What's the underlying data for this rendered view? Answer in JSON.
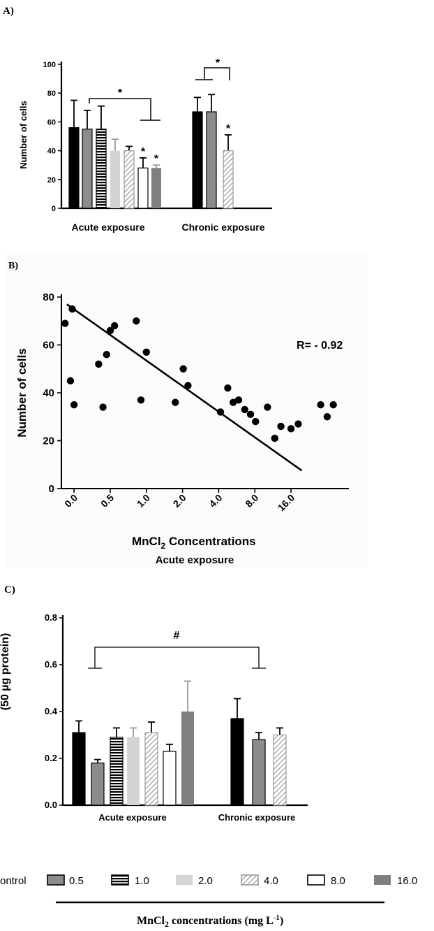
{
  "colors": {
    "black": "#000000",
    "gray": "#8c8c8c",
    "light": "#d4d4d4",
    "dark": "#7f7f7f",
    "panel_b_bg": "#fbfbfb"
  },
  "chart_data": [
    {
      "panel": "A)",
      "type": "bar",
      "ylabel": "Number of cells",
      "ylim": [
        0,
        100
      ],
      "yticks": [
        "0",
        "20",
        "40",
        "60",
        "80",
        "100"
      ],
      "groups": [
        {
          "label": "Acute exposure",
          "bars": [
            {
              "name": "Control",
              "value": 56,
              "error": 19
            },
            {
              "name": "0.5",
              "value": 55,
              "error": 13
            },
            {
              "name": "1.0",
              "value": 55,
              "error": 16
            },
            {
              "name": "2.0",
              "value": 40,
              "error": 8
            },
            {
              "name": "4.0",
              "value": 40,
              "error": 3
            },
            {
              "name": "8.0",
              "value": 28,
              "error": 7,
              "star": "*"
            },
            {
              "name": "16.0",
              "value": 28,
              "error": 2,
              "star": "*"
            }
          ]
        },
        {
          "label": "Chronic exposure",
          "bars": [
            {
              "name": "Control",
              "value": 67,
              "error": 10
            },
            {
              "name": "0.5",
              "value": 67,
              "error": 12
            },
            {
              "name": "4.0",
              "value": 40,
              "error": 11,
              "star": "*"
            }
          ]
        }
      ],
      "brackets": [
        {
          "symbol": "*",
          "group": "Acute exposure"
        },
        {
          "symbol": "*",
          "group": "Chronic exposure"
        }
      ]
    },
    {
      "panel": "B)",
      "type": "scatter",
      "xlabel_main": "MnCl",
      "xlabel_sub": "2",
      "xlabel_rest": " Concentrations",
      "xlabel2": "Acute exposure",
      "ylabel": "Number of cells",
      "ylim": [
        0,
        80
      ],
      "yticks": [
        "0",
        "20",
        "40",
        "60",
        "80"
      ],
      "xticks": [
        "0.0",
        "0.5",
        "1.0",
        "2.0",
        "4.0",
        "8.0",
        "16.0"
      ],
      "annotation": "R= - 0.92",
      "regression": {
        "start": [
          -0.2,
          77
        ],
        "end": [
          6.3,
          7.5
        ]
      },
      "points": [
        [
          -0.25,
          69
        ],
        [
          -0.1,
          45
        ],
        [
          -0.05,
          75
        ],
        [
          0.0,
          35
        ],
        [
          0.68,
          52
        ],
        [
          0.8,
          34
        ],
        [
          0.9,
          56
        ],
        [
          1.0,
          66
        ],
        [
          1.12,
          68
        ],
        [
          1.72,
          70
        ],
        [
          1.85,
          37
        ],
        [
          2.0,
          57
        ],
        [
          2.8,
          36
        ],
        [
          3.02,
          50
        ],
        [
          3.15,
          43
        ],
        [
          4.05,
          32
        ],
        [
          4.25,
          42
        ],
        [
          4.4,
          36
        ],
        [
          4.55,
          37
        ],
        [
          4.72,
          33
        ],
        [
          4.88,
          31
        ],
        [
          5.02,
          28
        ],
        [
          5.35,
          34
        ],
        [
          5.55,
          21
        ],
        [
          5.72,
          26
        ],
        [
          6.0,
          25
        ],
        [
          6.2,
          27
        ],
        [
          6.82,
          35
        ],
        [
          7.0,
          30
        ],
        [
          7.17,
          35
        ]
      ]
    },
    {
      "panel": "C)",
      "type": "bar",
      "ylabel": "(50 µg protein)",
      "ylim": [
        0,
        0.8
      ],
      "yticks": [
        "0.0",
        "0.2",
        "0.4",
        "0.6",
        "0.8"
      ],
      "groups": [
        {
          "label": "Acute exposure",
          "bars": [
            {
              "name": "Control",
              "value": 0.31,
              "error": 0.05
            },
            {
              "name": "0.5",
              "value": 0.18,
              "error": 0.015
            },
            {
              "name": "1.0",
              "value": 0.29,
              "error": 0.04
            },
            {
              "name": "2.0",
              "value": 0.29,
              "error": 0.04
            },
            {
              "name": "4.0",
              "value": 0.31,
              "error": 0.045
            },
            {
              "name": "8.0",
              "value": 0.23,
              "error": 0.03
            },
            {
              "name": "16.0",
              "value": 0.4,
              "error": 0.13
            }
          ]
        },
        {
          "label": "Chronic exposure",
          "bars": [
            {
              "name": "Control",
              "value": 0.37,
              "error": 0.085
            },
            {
              "name": "0.5",
              "value": 0.28,
              "error": 0.03
            },
            {
              "name": "4.0",
              "value": 0.3,
              "error": 0.03
            }
          ]
        }
      ],
      "brackets": [
        {
          "symbol": "#",
          "group": "Acute vs Chronic"
        }
      ]
    }
  ],
  "legend": {
    "items": [
      {
        "label": "ontrol",
        "style": "black"
      },
      {
        "label": "0.5",
        "style": "gray"
      },
      {
        "label": "1.0",
        "style": "stripe-h"
      },
      {
        "label": "2.0",
        "style": "light"
      },
      {
        "label": "4.0",
        "style": "hatch"
      },
      {
        "label": "8.0",
        "style": "white"
      },
      {
        "label": "16.0",
        "style": "dark"
      }
    ],
    "title_main": "MnCl",
    "title_sub": "2",
    "title_rest": " concentrations (mg L",
    "title_sup": "-1",
    "title_end": ")"
  }
}
